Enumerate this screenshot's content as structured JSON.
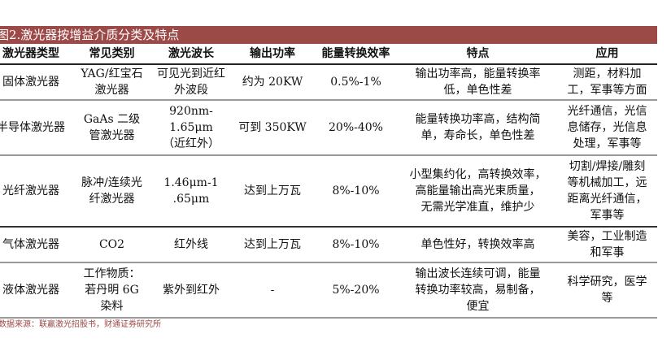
{
  "title": "图2.激光器按增益介质分类及特点",
  "headers": [
    "激光器类型",
    "常见类别",
    "激光波长",
    "输出功率",
    "能量转换效率",
    "特点",
    "应用"
  ],
  "rows": [
    [
      "固体激光器",
      "YAG/红宝石\n激光器",
      "可见光到近红\n外波段",
      "约为 20KW",
      "0.5%-1%",
      "输出功率高，能量转换率\n低，单色性差",
      "测距，材料加\n工，军事等方面"
    ],
    [
      "半导体激光器",
      "GaAs 二级\n管激光器",
      "920nm-\n1.65μm\n（近红外）",
      "可到 350KW",
      "20%-40%",
      "能量转换功率高，结构简\n单，寿命长，单色性差",
      "光纤通信，光信\n息储存，光信息\n处理，军事等"
    ],
    [
      "光纤激光器",
      "脉冲/连续光\n纤激光器",
      "1.46μm-1\n.65μm",
      "达到上万瓦",
      "8%-10%",
      "小型集约化，高转换效率，\n高能量输出高光束质量，\n无需光学准直，维护少",
      "切割/焊接/雕刻\n等机械加工，远\n距离光纤通信，\n军事等"
    ],
    [
      "气体激光器",
      "CO2",
      "红外线",
      "达到上万瓦",
      "8%-10%",
      "单色性好，转换效率高",
      "美容，工业制造\n和军事"
    ],
    [
      "液体激光器",
      "工作物质：\n若丹明 6G\n染料",
      "紫外到红外",
      "-",
      "5%-20%",
      "输出波长连续可调，能量\n转换功率较高，易制备，\n便宜",
      "科学研究，医学\n等"
    ]
  ],
  "source": "数据来源：联赢激光招股书，财通证券研究所",
  "colors": {
    "title_bar": "#9c4a47",
    "source_text": "#9c4a47"
  }
}
